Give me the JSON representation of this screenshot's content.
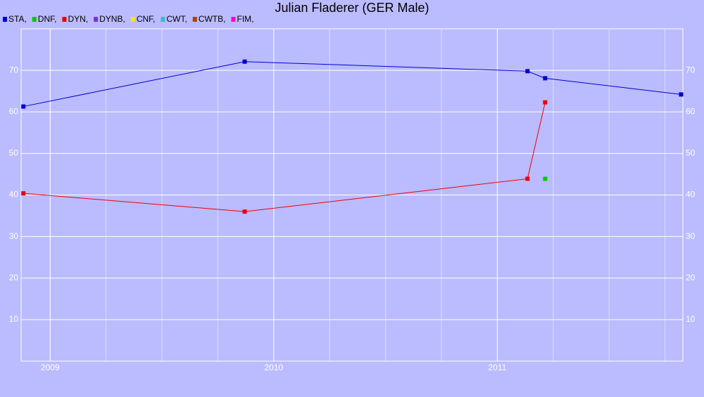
{
  "chart_data": {
    "type": "line",
    "title": "Julian Fladerer (GER Male)",
    "xlim": [
      2008.87,
      2011.83
    ],
    "xticks": [
      2009,
      2010,
      2011
    ],
    "ylim": [
      0,
      80
    ],
    "yticks": [
      10,
      20,
      30,
      40,
      50,
      60,
      70
    ],
    "grid": true,
    "series": [
      {
        "name": "STA,",
        "color": "#0000cc",
        "x": [
          2008.88,
          2009.87,
          2011.135,
          2011.214,
          2011.822
        ],
        "values": [
          61.3,
          72.1,
          69.8,
          68.1,
          64.2
        ]
      },
      {
        "name": "DNF,",
        "color": "#00cc00",
        "x": [
          2011.214
        ],
        "values": [
          43.9
        ]
      },
      {
        "name": "DYN,",
        "color": "#ee0000",
        "x": [
          2008.88,
          2009.87,
          2011.135,
          2011.214
        ],
        "values": [
          40.4,
          36.0,
          43.9,
          62.3
        ]
      },
      {
        "name": "DYNB,",
        "color": "#7733dd",
        "x": [],
        "values": []
      },
      {
        "name": "CNF,",
        "color": "#eeee00",
        "x": [],
        "values": []
      },
      {
        "name": "CWT,",
        "color": "#33bbcc",
        "x": [],
        "values": []
      },
      {
        "name": "CWTB,",
        "color": "#aa4400",
        "x": [],
        "values": []
      },
      {
        "name": "FIM,",
        "color": "#ff00cc",
        "x": [],
        "values": []
      }
    ]
  }
}
